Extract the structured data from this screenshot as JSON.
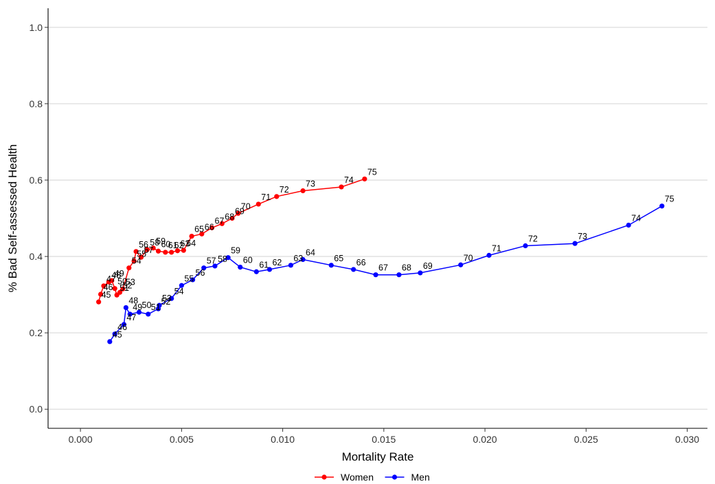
{
  "chart_data": {
    "type": "line",
    "title": "",
    "xlabel": "Mortality Rate",
    "ylabel": "% Bad Self-assessed Health",
    "xlim": [
      -0.0016,
      0.031
    ],
    "ylim": [
      -0.05,
      1.05
    ],
    "x_ticks": [
      0.0,
      0.005,
      0.01,
      0.015,
      0.02,
      0.025,
      0.03
    ],
    "x_tick_labels": [
      "0.000",
      "0.005",
      "0.010",
      "0.015",
      "0.020",
      "0.025",
      "0.030"
    ],
    "y_ticks": [
      0.0,
      0.2,
      0.4,
      0.6,
      0.8,
      1.0
    ],
    "y_tick_labels": [
      "0.0",
      "0.2",
      "0.4",
      "0.6",
      "0.8",
      "1.0"
    ],
    "grid": "horizontal major",
    "legend_position": "bottom",
    "series": [
      {
        "name": "Women",
        "color": "#ff0000",
        "points": [
          {
            "label": "45",
            "x": 0.0009,
            "y": 0.281
          },
          {
            "label": "46",
            "x": 0.001,
            "y": 0.301
          },
          {
            "label": "47",
            "x": 0.00115,
            "y": 0.323
          },
          {
            "label": "48",
            "x": 0.0014,
            "y": 0.333
          },
          {
            "label": "49",
            "x": 0.00155,
            "y": 0.337
          },
          {
            "label": "50",
            "x": 0.0017,
            "y": 0.316
          },
          {
            "label": "51",
            "x": 0.0018,
            "y": 0.299
          },
          {
            "label": "52",
            "x": 0.00195,
            "y": 0.306
          },
          {
            "label": "53",
            "x": 0.0021,
            "y": 0.315
          },
          {
            "label": "54",
            "x": 0.0024,
            "y": 0.37
          },
          {
            "label": "55",
            "x": 0.00265,
            "y": 0.388
          },
          {
            "label": "56",
            "x": 0.00275,
            "y": 0.413
          },
          {
            "label": "57",
            "x": 0.003,
            "y": 0.398
          },
          {
            "label": "58",
            "x": 0.0033,
            "y": 0.418
          },
          {
            "label": "59",
            "x": 0.0036,
            "y": 0.422
          },
          {
            "label": "60",
            "x": 0.00385,
            "y": 0.414
          },
          {
            "label": "61",
            "x": 0.0042,
            "y": 0.411
          },
          {
            "label": "62",
            "x": 0.0045,
            "y": 0.411
          },
          {
            "label": "63",
            "x": 0.0048,
            "y": 0.415
          },
          {
            "label": "64",
            "x": 0.0051,
            "y": 0.416
          },
          {
            "label": "65",
            "x": 0.0055,
            "y": 0.453
          },
          {
            "label": "66",
            "x": 0.006,
            "y": 0.459
          },
          {
            "label": "67",
            "x": 0.0065,
            "y": 0.475
          },
          {
            "label": "68",
            "x": 0.007,
            "y": 0.486
          },
          {
            "label": "69",
            "x": 0.0075,
            "y": 0.5
          },
          {
            "label": "70",
            "x": 0.0078,
            "y": 0.513
          },
          {
            "label": "71",
            "x": 0.0088,
            "y": 0.537
          },
          {
            "label": "72",
            "x": 0.0097,
            "y": 0.557
          },
          {
            "label": "73",
            "x": 0.011,
            "y": 0.572
          },
          {
            "label": "74",
            "x": 0.0129,
            "y": 0.582
          },
          {
            "label": "75",
            "x": 0.01405,
            "y": 0.603
          }
        ]
      },
      {
        "name": "Men",
        "color": "#0000ff",
        "points": [
          {
            "label": "45",
            "x": 0.00145,
            "y": 0.177
          },
          {
            "label": "46",
            "x": 0.0017,
            "y": 0.197
          },
          {
            "label": "47",
            "x": 0.00215,
            "y": 0.222
          },
          {
            "label": "48",
            "x": 0.00225,
            "y": 0.266
          },
          {
            "label": "49",
            "x": 0.00245,
            "y": 0.249
          },
          {
            "label": "50",
            "x": 0.0029,
            "y": 0.254
          },
          {
            "label": "51",
            "x": 0.00335,
            "y": 0.249
          },
          {
            "label": "52",
            "x": 0.00385,
            "y": 0.263
          },
          {
            "label": "53",
            "x": 0.0039,
            "y": 0.272
          },
          {
            "label": "54",
            "x": 0.0045,
            "y": 0.29
          },
          {
            "label": "55",
            "x": 0.005,
            "y": 0.324
          },
          {
            "label": "56",
            "x": 0.00555,
            "y": 0.339
          },
          {
            "label": "57",
            "x": 0.0061,
            "y": 0.37
          },
          {
            "label": "58",
            "x": 0.00665,
            "y": 0.375
          },
          {
            "label": "59",
            "x": 0.0073,
            "y": 0.397
          },
          {
            "label": "60",
            "x": 0.0079,
            "y": 0.372
          },
          {
            "label": "61",
            "x": 0.0087,
            "y": 0.36
          },
          {
            "label": "62",
            "x": 0.00935,
            "y": 0.366
          },
          {
            "label": "63",
            "x": 0.0104,
            "y": 0.377
          },
          {
            "label": "64",
            "x": 0.011,
            "y": 0.392
          },
          {
            "label": "65",
            "x": 0.0124,
            "y": 0.377
          },
          {
            "label": "66",
            "x": 0.0135,
            "y": 0.366
          },
          {
            "label": "67",
            "x": 0.0146,
            "y": 0.352
          },
          {
            "label": "68",
            "x": 0.01575,
            "y": 0.352
          },
          {
            "label": "69",
            "x": 0.0168,
            "y": 0.357
          },
          {
            "label": "70",
            "x": 0.0188,
            "y": 0.378
          },
          {
            "label": "71",
            "x": 0.0202,
            "y": 0.403
          },
          {
            "label": "72",
            "x": 0.022,
            "y": 0.428
          },
          {
            "label": "73",
            "x": 0.02445,
            "y": 0.434
          },
          {
            "label": "74",
            "x": 0.0271,
            "y": 0.482
          },
          {
            "label": "75",
            "x": 0.02875,
            "y": 0.532
          }
        ]
      }
    ]
  }
}
